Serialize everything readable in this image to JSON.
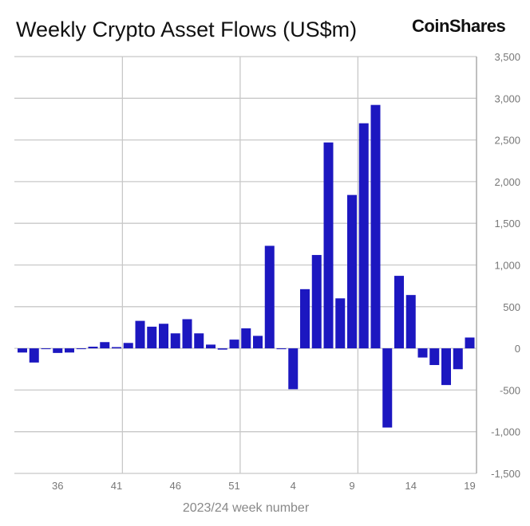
{
  "chart_data": {
    "type": "bar",
    "title": "Weekly Crypto Asset Flows (US$m)",
    "xlabel": "2023/24 week number",
    "ylabel": "",
    "ylim": [
      -1500,
      3500
    ],
    "yticks": [
      3500,
      3000,
      2500,
      2000,
      1500,
      1000,
      500,
      0,
      -500,
      -1000,
      -1500
    ],
    "ytick_labels": [
      "3,500",
      "3,000",
      "2,500",
      "2,000",
      "1,500",
      "1,000",
      "500",
      "0",
      "-500",
      "-1,000",
      "-1,500"
    ],
    "y_axis_side": "right",
    "grid": true,
    "color": "#1c17c0",
    "categories": [
      "33",
      "34",
      "35",
      "36",
      "37",
      "38",
      "39",
      "40",
      "41",
      "42",
      "43",
      "44",
      "45",
      "46",
      "47",
      "48",
      "49",
      "50",
      "51",
      "52",
      "1",
      "2",
      "3",
      "4",
      "5",
      "6",
      "7",
      "8",
      "9",
      "10",
      "11",
      "12",
      "13",
      "14",
      "15",
      "16",
      "17",
      "18",
      "19"
    ],
    "xtick_labels": [
      "36",
      "41",
      "46",
      "51",
      "4",
      "9",
      "14",
      "19"
    ],
    "values": [
      -50,
      -170,
      0,
      -55,
      -50,
      -5,
      20,
      75,
      15,
      65,
      330,
      260,
      295,
      180,
      350,
      180,
      45,
      -15,
      105,
      240,
      150,
      1230,
      -10,
      -490,
      710,
      1120,
      2470,
      600,
      1840,
      2700,
      2920,
      -950,
      870,
      640,
      -110,
      -200,
      -440,
      -250,
      130
    ]
  },
  "brand": {
    "logo": "CoinShares"
  }
}
